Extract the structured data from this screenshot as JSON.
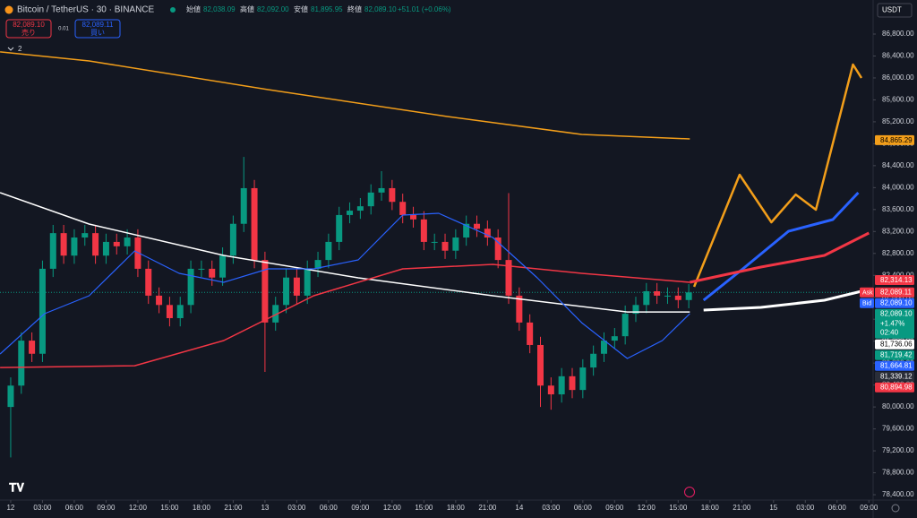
{
  "header": {
    "symbol": "Bitcoin / TetherUS · 30 · BINANCE",
    "ohlc": [
      {
        "label": "始値",
        "value": "82,038.09"
      },
      {
        "label": "高値",
        "value": "82,092.00"
      },
      {
        "label": "安値",
        "value": "81,895.95"
      },
      {
        "label": "終値",
        "value": "82,089.10"
      }
    ],
    "change": "+51.01 (+0.06%)"
  },
  "trade": {
    "sell_price": "82,089.10",
    "sell": "売り",
    "qty": "0.01",
    "buy_price": "82,089.11",
    "buy": "買い"
  },
  "indicators_count": "2",
  "currency": "USDT",
  "chart_data": {
    "type": "candlestick",
    "up_color": "#089981",
    "down_color": "#f23645",
    "grid": false,
    "xlim": [
      -1.01,
      81.4
    ],
    "ylim": [
      78335,
      87421
    ],
    "xticks": [
      {
        "value": 0,
        "label": "12"
      },
      {
        "value": 3,
        "label": "03:00"
      },
      {
        "value": 6,
        "label": "06:00"
      },
      {
        "value": 9,
        "label": "09:00"
      },
      {
        "value": 12,
        "label": "12:00"
      },
      {
        "value": 15,
        "label": "15:00"
      },
      {
        "value": 18,
        "label": "18:00"
      },
      {
        "value": 21,
        "label": "21:00"
      },
      {
        "value": 24,
        "label": "13"
      },
      {
        "value": 27,
        "label": "03:00"
      },
      {
        "value": 30,
        "label": "06:00"
      },
      {
        "value": 33,
        "label": "09:00"
      },
      {
        "value": 36,
        "label": "12:00"
      },
      {
        "value": 39,
        "label": "15:00"
      },
      {
        "value": 42,
        "label": "18:00"
      },
      {
        "value": 45,
        "label": "21:00"
      },
      {
        "value": 48,
        "label": "14"
      },
      {
        "value": 51,
        "label": "03:00"
      },
      {
        "value": 54,
        "label": "06:00"
      },
      {
        "value": 57,
        "label": "09:00"
      },
      {
        "value": 60,
        "label": "12:00"
      },
      {
        "value": 63,
        "label": "15:00"
      },
      {
        "value": 66,
        "label": "18:00"
      },
      {
        "value": 69,
        "label": "21:00"
      },
      {
        "value": 72,
        "label": "15"
      },
      {
        "value": 75,
        "label": "03:00"
      },
      {
        "value": 78,
        "label": "06:00"
      },
      {
        "value": 81,
        "label": "09:00"
      }
    ],
    "yticks": [
      {
        "value": 86800,
        "label": "86,800.00"
      },
      {
        "value": 86400,
        "label": "86,400.00"
      },
      {
        "value": 86000,
        "label": "86,000.00"
      },
      {
        "value": 85600,
        "label": "85,600.00"
      },
      {
        "value": 85200,
        "label": "85,200.00"
      },
      {
        "value": 84800,
        "label": "84,800.00"
      },
      {
        "value": 84400,
        "label": "84,400.00"
      },
      {
        "value": 84000,
        "label": "84,000.00"
      },
      {
        "value": 83600,
        "label": "83,600.00"
      },
      {
        "value": 83200,
        "label": "83,200.00"
      },
      {
        "value": 82800,
        "label": "82,800.00"
      },
      {
        "value": 82400,
        "label": "82,400.00"
      },
      {
        "value": 82000,
        "label": "82,000.00"
      },
      {
        "value": 81600,
        "label": "81,600.00"
      },
      {
        "value": 81200,
        "label": "81,200.00"
      },
      {
        "value": 80800,
        "label": "80,800.00"
      },
      {
        "value": 80400,
        "label": "80,400.00"
      },
      {
        "value": 80000,
        "label": "80,000.00"
      },
      {
        "value": 79600,
        "label": "79,600.00"
      },
      {
        "value": 79200,
        "label": "79,200.00"
      },
      {
        "value": 78800,
        "label": "78,800.00"
      },
      {
        "value": 78400,
        "label": "78,400.00"
      }
    ],
    "x": [
      0,
      1,
      2,
      3,
      4,
      5,
      6,
      7,
      8,
      9,
      10,
      11,
      12,
      13,
      14,
      15,
      16,
      17,
      18,
      19,
      20,
      21,
      22,
      23,
      24,
      25,
      26,
      27,
      28,
      29,
      30,
      31,
      32,
      33,
      34,
      35,
      36,
      37,
      38,
      39,
      40,
      41,
      42,
      43,
      44,
      45,
      46,
      47,
      48,
      49,
      50,
      51,
      52,
      53,
      54,
      55,
      56,
      57,
      58,
      59,
      60,
      61,
      62,
      63,
      64
    ],
    "open": [
      80000,
      80390,
      81210,
      80970,
      82520,
      83170,
      82760,
      83090,
      83170,
      82760,
      83010,
      82930,
      83090,
      82520,
      82030,
      81860,
      81620,
      81860,
      82520,
      82520,
      82360,
      82760,
      83340,
      83990,
      82680,
      81540,
      81860,
      82360,
      82030,
      82520,
      82680,
      83010,
      83500,
      83580,
      83660,
      83910,
      83990,
      83740,
      83500,
      83420,
      83010,
      83010,
      82850,
      83090,
      83340,
      83250,
      83090,
      82680,
      82030,
      81540,
      81130,
      80390,
      80230,
      80560,
      80310,
      80720,
      80970,
      81210,
      81290,
      81700,
      81860,
      82110,
      82030,
      82030,
      81950
    ],
    "high": [
      80540,
      81360,
      81360,
      82670,
      83320,
      83320,
      83240,
      83320,
      83320,
      83160,
      83160,
      83240,
      83240,
      82670,
      82180,
      82010,
      82010,
      82670,
      82670,
      82670,
      82910,
      83490,
      84560,
      84140,
      82830,
      82010,
      82510,
      82510,
      82670,
      82830,
      83160,
      83650,
      83730,
      83810,
      84060,
      84300,
      84140,
      83890,
      83650,
      83570,
      83160,
      83160,
      83240,
      83490,
      83490,
      83400,
      83240,
      83900,
      82180,
      81690,
      81280,
      80540,
      80710,
      80710,
      80870,
      81120,
      81360,
      81440,
      81850,
      82010,
      82260,
      82260,
      82180,
      82180,
      82240
    ],
    "low": [
      79080,
      80240,
      80820,
      80820,
      82370,
      82610,
      82610,
      82940,
      82610,
      82610,
      82780,
      82780,
      82370,
      81880,
      81710,
      81470,
      81470,
      81710,
      82370,
      82210,
      82210,
      82610,
      83190,
      82530,
      80640,
      81390,
      81710,
      81880,
      81880,
      82370,
      82530,
      82860,
      83350,
      83430,
      83510,
      83760,
      83590,
      83350,
      83270,
      82860,
      82860,
      82700,
      82700,
      82940,
      83100,
      82940,
      82530,
      81880,
      81390,
      80980,
      80000,
      79950,
      80080,
      80160,
      80160,
      80570,
      80820,
      81060,
      81140,
      81550,
      81710,
      81880,
      81880,
      81800,
      81800
    ],
    "close": [
      80390,
      81210,
      80970,
      82520,
      83170,
      82760,
      83090,
      83170,
      82760,
      83010,
      82930,
      83090,
      82520,
      82030,
      81860,
      81620,
      81860,
      82520,
      82520,
      82360,
      82760,
      83340,
      83990,
      82680,
      81540,
      81860,
      82360,
      82030,
      82520,
      82680,
      83010,
      83500,
      83580,
      83660,
      83910,
      83990,
      83740,
      83500,
      83420,
      83010,
      83010,
      82850,
      83090,
      83340,
      83250,
      83090,
      82680,
      82030,
      81540,
      81130,
      80390,
      80230,
      80560,
      80310,
      80720,
      80970,
      81210,
      81290,
      81700,
      81860,
      82110,
      82030,
      82030,
      81950,
      82089.1
    ],
    "last_price": 82089.1,
    "overlays": [
      {
        "color": "#f29e1a",
        "width": 1.5,
        "x": [
          -1,
          7.4,
          24.3,
          41.2,
          53.9,
          64.1
        ],
        "values": [
          86475,
          86310,
          85787,
          85297,
          84970,
          84888
        ]
      },
      {
        "color": "#ffffff",
        "width": 1.5,
        "x": [
          -1,
          7.4,
          20.1,
          32.8,
          45.5,
          58.2,
          64.1
        ],
        "values": [
          83907,
          83335,
          82763,
          82355,
          82028,
          81733,
          81733
        ]
      },
      {
        "color": "#f23645",
        "width": 1.5,
        "x": [
          -1,
          11.7,
          20.1,
          28.6,
          37,
          45.5,
          53.9,
          64.1
        ],
        "values": [
          80720,
          80752,
          81211,
          82028,
          82518,
          82600,
          82436,
          82273
        ]
      },
      {
        "color": "#2962ff",
        "width": 1.2,
        "x": [
          -1,
          3.2,
          7.4,
          11.7,
          15.9,
          20.1,
          24.3,
          28.6,
          32.8,
          37,
          40.4,
          45.5,
          49.7,
          53.9,
          58.2,
          61.5,
          64.1
        ],
        "values": [
          80966,
          81701,
          82028,
          82845,
          82436,
          82273,
          82518,
          82518,
          82682,
          83499,
          83531,
          83090,
          82355,
          81537,
          80884,
          81211,
          81701
        ]
      },
      {
        "color": "#f29e1a",
        "width": 2.5,
        "x": [
          64.5,
          68.8,
          71.8,
          74.1,
          76,
          79.5,
          80.3
        ],
        "values": [
          82191,
          84234,
          83368,
          83874,
          83597,
          86244,
          85999
        ]
      },
      {
        "color": "#2962ff",
        "width": 3,
        "x": [
          65.4,
          69.1,
          73.4,
          77.6,
          80
        ],
        "values": [
          81946,
          82518,
          83204,
          83417,
          83907
        ]
      },
      {
        "color": "#f23645",
        "width": 3,
        "x": [
          64.1,
          70.8,
          76.8,
          81
        ],
        "values": [
          82273,
          82551,
          82763,
          83172
        ]
      },
      {
        "color": "#ffffff",
        "width": 3,
        "x": [
          65.4,
          70.8,
          76.8,
          81
        ],
        "values": [
          81766,
          81815,
          81946,
          82142
        ]
      }
    ],
    "price_labels": [
      {
        "value": 84865.29,
        "label": "84,865.29",
        "color": "#f29e1a",
        "text_color": "#000000"
      },
      {
        "value": 82314.13,
        "label": "82,314.13",
        "color": "#f23645",
        "text_color": "#ffffff"
      },
      {
        "value": 82089.11,
        "label": "82,089.11",
        "color": "#f23645",
        "text_color": "#ffffff",
        "tag": "Ask"
      },
      {
        "value": 82089.1,
        "label": "82,089.10",
        "color": "#2962ff",
        "text_color": "#ffffff",
        "tag": "Bid"
      },
      {
        "value": 82089.1,
        "label": "82,089.10",
        "color": "#089981",
        "text_color": "#ffffff",
        "extra": [
          "+1.47%",
          "02:40"
        ]
      },
      {
        "value": 81736.06,
        "label": "81,736.06",
        "color": "#ffffff",
        "text_color": "#000000"
      },
      {
        "value": 81719.42,
        "label": "81,719.42",
        "color": "#089981",
        "text_color": "#ffffff"
      },
      {
        "value": 81664.81,
        "label": "81,664.81",
        "color": "#2962ff",
        "text_color": "#ffffff"
      },
      {
        "value": 81339.12,
        "label": "81,339.12",
        "color": "#2a2e39",
        "text_color": "#ffffff"
      },
      {
        "value": 80894.98,
        "label": "80,894.98",
        "color": "#f23645",
        "text_color": "#ffffff"
      }
    ]
  }
}
